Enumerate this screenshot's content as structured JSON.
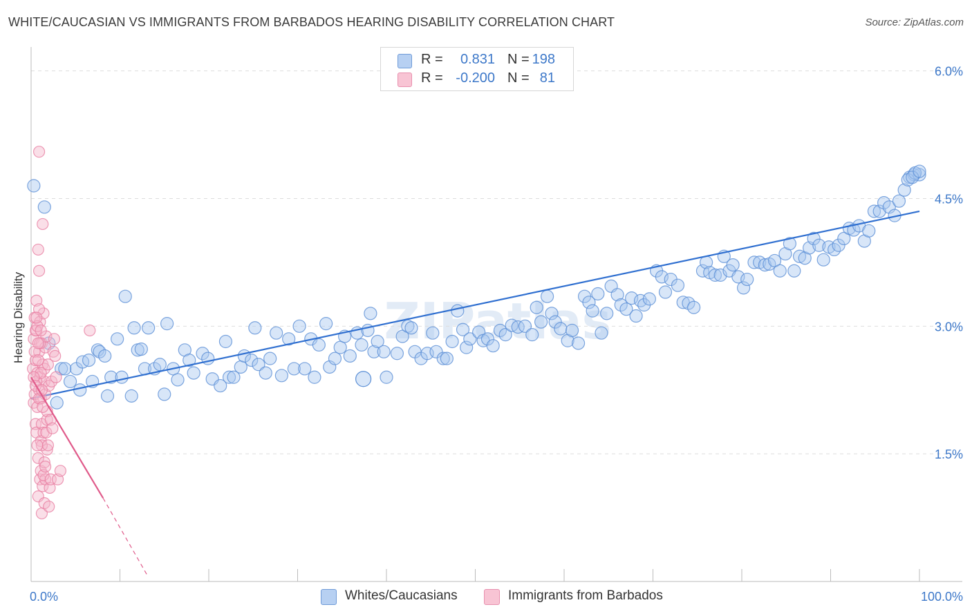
{
  "header": {
    "title": "WHITE/CAUCASIAN VS IMMIGRANTS FROM BARBADOS HEARING DISABILITY CORRELATION CHART",
    "source": "Source: ZipAtlas.com"
  },
  "legend": {
    "rows": [
      {
        "r_label": "R =",
        "r_value": "0.831",
        "n_label": "N =",
        "n_value": "198"
      },
      {
        "r_label": "R =",
        "r_value": "-0.200",
        "n_label": "N =",
        "n_value": "81"
      }
    ]
  },
  "bottom_legend": {
    "series1": "Whites/Caucasians",
    "series2": "Immigrants from Barbados"
  },
  "colors": {
    "blue_fill": "#a9c8f0",
    "blue_stroke": "#5b8fd6",
    "blue_line": "#2f6fd0",
    "pink_fill": "#f5b8cc",
    "pink_stroke": "#e87fa3",
    "pink_line": "#e05a8a",
    "tick_label": "#3d78c9",
    "grid": "#dddddd"
  },
  "chart_data": {
    "type": "scatter",
    "title": "WHITE/CAUCASIAN VS IMMIGRANTS FROM BARBADOS HEARING DISABILITY CORRELATION CHART",
    "xlabel": "",
    "ylabel": "Hearing Disability",
    "xlim": [
      0,
      100
    ],
    "ylim": [
      0,
      6.2
    ],
    "x_tick_labels": [
      "0.0%",
      "100.0%"
    ],
    "y_ticks": [
      1.5,
      3.0,
      4.5,
      6.0
    ],
    "y_tick_labels": [
      "1.5%",
      "3.0%",
      "4.5%",
      "6.0%"
    ],
    "grid": "horizontal dashed",
    "legend_position": "top-center",
    "watermark": "ZIPatlas",
    "series": [
      {
        "name": "Whites/Caucasians",
        "r": 0.831,
        "n": 198,
        "trend": {
          "x": [
            0,
            100
          ],
          "y": [
            2.15,
            4.35
          ]
        },
        "points": [
          [
            0.3,
            4.65
          ],
          [
            1.5,
            4.4
          ],
          [
            2.0,
            2.8
          ],
          [
            2.9,
            2.1
          ],
          [
            3.4,
            2.5
          ],
          [
            3.8,
            2.5
          ],
          [
            4.4,
            2.35
          ],
          [
            5.1,
            2.5
          ],
          [
            5.5,
            2.25
          ],
          [
            5.8,
            2.58
          ],
          [
            6.5,
            2.6
          ],
          [
            6.9,
            2.35
          ],
          [
            7.5,
            2.72
          ],
          [
            7.7,
            2.7
          ],
          [
            8.3,
            2.65
          ],
          [
            8.6,
            2.18
          ],
          [
            9.0,
            2.4
          ],
          [
            9.7,
            2.85
          ],
          [
            10.2,
            2.4
          ],
          [
            10.6,
            3.35
          ],
          [
            11.3,
            2.18
          ],
          [
            11.6,
            2.98
          ],
          [
            12.0,
            2.72
          ],
          [
            12.4,
            2.73
          ],
          [
            12.8,
            2.5
          ],
          [
            13.2,
            2.98
          ],
          [
            13.9,
            2.5
          ],
          [
            14.5,
            2.55
          ],
          [
            15.0,
            2.2
          ],
          [
            15.3,
            3.03
          ],
          [
            16.0,
            2.5
          ],
          [
            16.5,
            2.37
          ],
          [
            17.3,
            2.72
          ],
          [
            17.8,
            2.6
          ],
          [
            18.3,
            2.45
          ],
          [
            19.3,
            2.68
          ],
          [
            19.9,
            2.62
          ],
          [
            20.4,
            2.38
          ],
          [
            21.3,
            2.3
          ],
          [
            21.9,
            2.82
          ],
          [
            22.3,
            2.4
          ],
          [
            22.8,
            2.4
          ],
          [
            23.6,
            2.52
          ],
          [
            24.0,
            2.65
          ],
          [
            24.8,
            2.6
          ],
          [
            25.2,
            2.98
          ],
          [
            25.6,
            2.55
          ],
          [
            26.4,
            2.45
          ],
          [
            26.9,
            2.62
          ],
          [
            27.6,
            2.92
          ],
          [
            28.2,
            2.42
          ],
          [
            29.0,
            2.85
          ],
          [
            29.6,
            2.5
          ],
          [
            30.2,
            3.0
          ],
          [
            30.8,
            2.5
          ],
          [
            31.5,
            2.85
          ],
          [
            31.9,
            2.4
          ],
          [
            32.4,
            2.78
          ],
          [
            33.2,
            3.03
          ],
          [
            33.6,
            2.52
          ],
          [
            34.2,
            2.62
          ],
          [
            34.8,
            2.75
          ],
          [
            35.3,
            2.88
          ],
          [
            35.9,
            2.65
          ],
          [
            36.7,
            2.92
          ],
          [
            37.2,
            2.78
          ],
          [
            37.9,
            2.95
          ],
          [
            38.2,
            3.15
          ],
          [
            38.6,
            2.7
          ],
          [
            39.0,
            2.82
          ],
          [
            39.7,
            2.7
          ],
          [
            40.0,
            2.4
          ],
          [
            41.2,
            2.68
          ],
          [
            41.8,
            2.88
          ],
          [
            42.4,
            3.0
          ],
          [
            42.8,
            2.98
          ],
          [
            43.2,
            2.7
          ],
          [
            43.9,
            2.62
          ],
          [
            44.6,
            2.68
          ],
          [
            45.2,
            2.92
          ],
          [
            45.6,
            2.7
          ],
          [
            46.4,
            2.62
          ],
          [
            46.8,
            2.62
          ],
          [
            47.4,
            2.82
          ],
          [
            48.0,
            3.18
          ],
          [
            48.6,
            2.96
          ],
          [
            49.0,
            2.75
          ],
          [
            49.4,
            2.85
          ],
          [
            50.4,
            2.93
          ],
          [
            50.9,
            2.83
          ],
          [
            51.4,
            2.85
          ],
          [
            52.0,
            2.77
          ],
          [
            52.8,
            2.95
          ],
          [
            53.4,
            2.9
          ],
          [
            54.1,
            3.01
          ],
          [
            54.8,
            2.99
          ],
          [
            55.6,
            3.0
          ],
          [
            56.4,
            2.9
          ],
          [
            56.9,
            3.22
          ],
          [
            57.4,
            3.05
          ],
          [
            58.1,
            3.35
          ],
          [
            58.6,
            3.15
          ],
          [
            59.0,
            3.05
          ],
          [
            59.6,
            2.97
          ],
          [
            60.4,
            2.83
          ],
          [
            60.9,
            2.95
          ],
          [
            61.6,
            2.8
          ],
          [
            62.3,
            3.35
          ],
          [
            62.8,
            3.28
          ],
          [
            63.2,
            3.18
          ],
          [
            63.8,
            3.38
          ],
          [
            64.2,
            2.92
          ],
          [
            64.8,
            3.15
          ],
          [
            65.3,
            3.47
          ],
          [
            66.0,
            3.37
          ],
          [
            66.4,
            3.25
          ],
          [
            67.0,
            3.2
          ],
          [
            67.6,
            3.33
          ],
          [
            68.1,
            3.12
          ],
          [
            68.6,
            3.3
          ],
          [
            69.0,
            3.25
          ],
          [
            69.6,
            3.32
          ],
          [
            70.4,
            3.65
          ],
          [
            71.0,
            3.58
          ],
          [
            71.4,
            3.4
          ],
          [
            72.0,
            3.55
          ],
          [
            72.8,
            3.48
          ],
          [
            73.4,
            3.28
          ],
          [
            74.0,
            3.27
          ],
          [
            74.6,
            3.22
          ],
          [
            75.6,
            3.65
          ],
          [
            76.0,
            3.75
          ],
          [
            76.4,
            3.63
          ],
          [
            77.0,
            3.6
          ],
          [
            77.6,
            3.6
          ],
          [
            78.0,
            3.82
          ],
          [
            78.6,
            3.65
          ],
          [
            79.0,
            3.72
          ],
          [
            79.6,
            3.58
          ],
          [
            80.2,
            3.45
          ],
          [
            80.6,
            3.55
          ],
          [
            81.4,
            3.75
          ],
          [
            82.0,
            3.75
          ],
          [
            82.6,
            3.72
          ],
          [
            83.1,
            3.73
          ],
          [
            83.7,
            3.77
          ],
          [
            84.3,
            3.65
          ],
          [
            84.9,
            3.85
          ],
          [
            85.4,
            3.97
          ],
          [
            85.9,
            3.65
          ],
          [
            86.5,
            3.82
          ],
          [
            87.1,
            3.8
          ],
          [
            87.6,
            3.92
          ],
          [
            88.1,
            4.03
          ],
          [
            88.7,
            3.95
          ],
          [
            89.2,
            3.78
          ],
          [
            89.8,
            3.93
          ],
          [
            90.4,
            3.9
          ],
          [
            90.9,
            3.95
          ],
          [
            91.5,
            4.03
          ],
          [
            92.1,
            4.15
          ],
          [
            92.6,
            4.13
          ],
          [
            93.2,
            4.18
          ],
          [
            93.8,
            4.0
          ],
          [
            94.3,
            4.12
          ],
          [
            94.9,
            4.35
          ],
          [
            95.5,
            4.35
          ],
          [
            96.0,
            4.45
          ],
          [
            96.6,
            4.4
          ],
          [
            97.2,
            4.3
          ],
          [
            97.7,
            4.47
          ],
          [
            98.3,
            4.6
          ],
          [
            98.9,
            4.75
          ],
          [
            99.4,
            4.78
          ],
          [
            100.0,
            4.78
          ]
        ],
        "points_note": "x values past 88 compressed; upper-right cluster continues below",
        "points_extra": [
          [
            98.7,
            4.72
          ],
          [
            99.5,
            4.8
          ],
          [
            99.2,
            4.75
          ],
          [
            100.0,
            4.82
          ]
        ]
      },
      {
        "name": "Immigrants from Barbados",
        "r": -0.2,
        "n": 81,
        "trend": {
          "x": [
            0,
            8.1
          ],
          "y": [
            2.4,
            0.98
          ]
        },
        "trend_dashed": {
          "x": [
            8.1,
            13.2
          ],
          "y": [
            0.98,
            0.05
          ]
        },
        "points": [
          [
            0.2,
            2.5
          ],
          [
            0.3,
            2.1
          ],
          [
            0.3,
            2.85
          ],
          [
            0.4,
            3.1
          ],
          [
            0.4,
            2.2
          ],
          [
            0.5,
            1.85
          ],
          [
            0.5,
            2.6
          ],
          [
            0.6,
            2.95
          ],
          [
            0.6,
            3.3
          ],
          [
            0.6,
            1.75
          ],
          [
            0.7,
            2.45
          ],
          [
            0.7,
            2.05
          ],
          [
            0.8,
            1.45
          ],
          [
            0.8,
            3.9
          ],
          [
            0.8,
            1.0
          ],
          [
            0.9,
            2.25
          ],
          [
            0.9,
            2.7
          ],
          [
            0.9,
            3.65
          ],
          [
            0.9,
            5.05
          ],
          [
            1.0,
            1.2
          ],
          [
            1.0,
            2.4
          ],
          [
            1.0,
            3.05
          ],
          [
            1.1,
            2.15
          ],
          [
            1.1,
            1.3
          ],
          [
            1.1,
            1.65
          ],
          [
            1.2,
            1.85
          ],
          [
            1.2,
            2.8
          ],
          [
            1.2,
            0.8
          ],
          [
            1.3,
            1.12
          ],
          [
            1.3,
            2.55
          ],
          [
            1.3,
            4.2
          ],
          [
            1.4,
            3.15
          ],
          [
            1.4,
            1.75
          ],
          [
            1.5,
            2.35
          ],
          [
            1.5,
            2.5
          ],
          [
            1.5,
            1.4
          ],
          [
            1.5,
            0.92
          ],
          [
            1.6,
            2.75
          ],
          [
            1.6,
            1.2
          ],
          [
            1.6,
            2.2
          ],
          [
            1.7,
            1.75
          ],
          [
            1.7,
            2.88
          ],
          [
            1.8,
            1.9
          ],
          [
            1.8,
            2.0
          ],
          [
            1.8,
            1.55
          ],
          [
            1.9,
            2.55
          ],
          [
            2.0,
            0.88
          ],
          [
            2.0,
            2.3
          ],
          [
            2.1,
            1.1
          ],
          [
            2.2,
            1.9
          ],
          [
            2.3,
            2.35
          ],
          [
            2.4,
            1.8
          ],
          [
            2.5,
            2.7
          ],
          [
            2.6,
            2.85
          ],
          [
            2.7,
            2.65
          ],
          [
            0.4,
            2.7
          ],
          [
            0.5,
            2.95
          ],
          [
            0.6,
            2.35
          ],
          [
            0.7,
            3.0
          ],
          [
            0.8,
            2.6
          ],
          [
            0.9,
            2.15
          ],
          [
            1.0,
            2.8
          ],
          [
            1.1,
            2.45
          ],
          [
            1.2,
            1.6
          ],
          [
            1.3,
            2.05
          ],
          [
            1.4,
            1.25
          ],
          [
            0.3,
            2.4
          ],
          [
            0.5,
            2.3
          ],
          [
            0.7,
            1.6
          ],
          [
            0.9,
            3.2
          ],
          [
            1.1,
            2.95
          ],
          [
            1.2,
            2.25
          ],
          [
            1.6,
            1.35
          ],
          [
            1.9,
            1.6
          ],
          [
            2.2,
            1.2
          ],
          [
            2.8,
            2.4
          ],
          [
            3.0,
            1.2
          ],
          [
            3.3,
            1.3
          ],
          [
            6.6,
            2.95
          ],
          [
            0.6,
            3.1
          ],
          [
            0.8,
            2.8
          ]
        ]
      }
    ]
  }
}
